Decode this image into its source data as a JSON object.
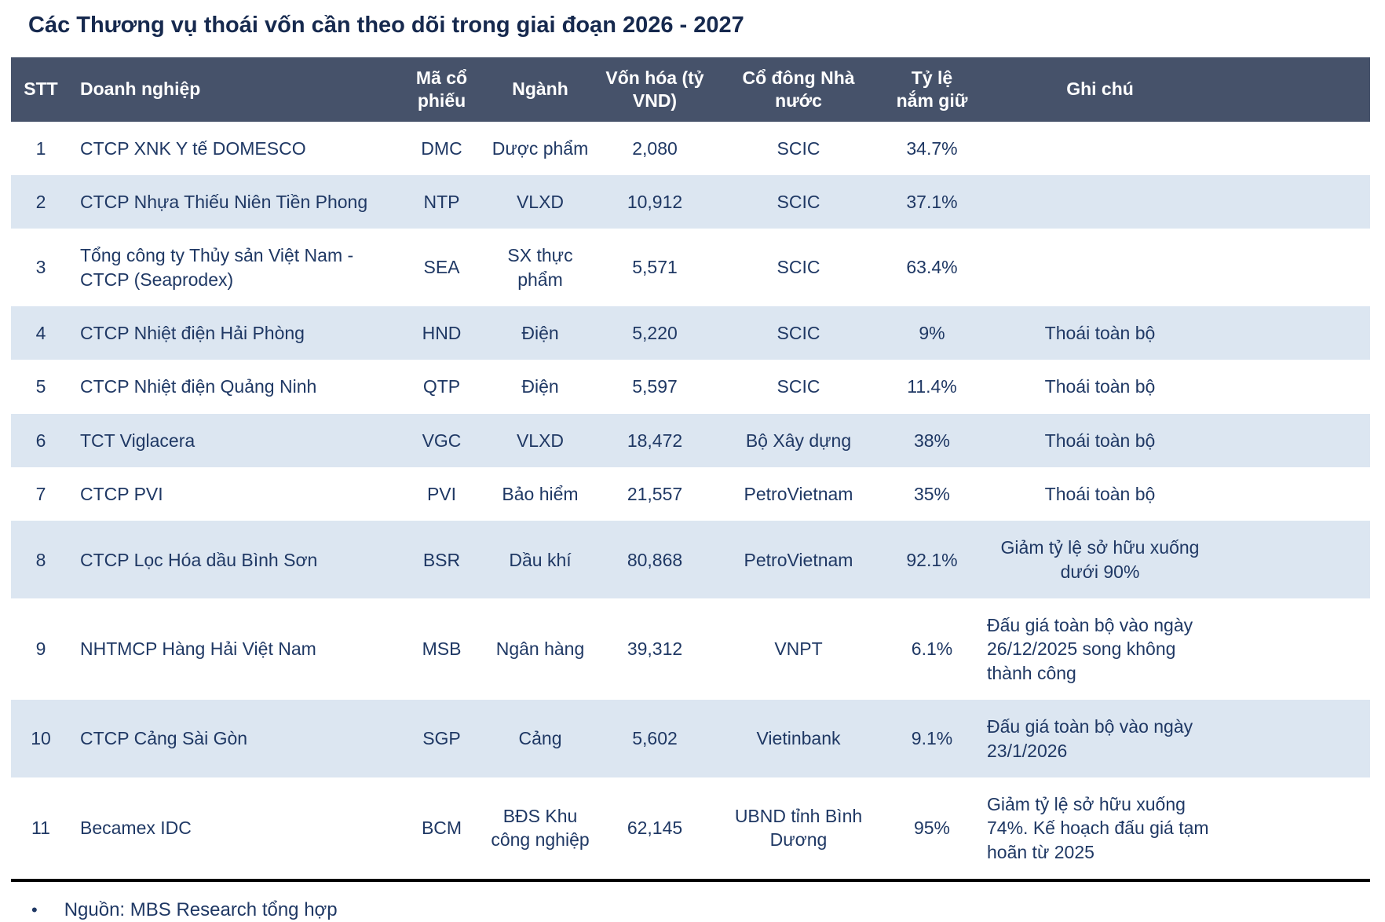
{
  "title": "Các Thương vụ thoái vốn cần theo dõi trong giai đoạn 2026 - 2027",
  "colors": {
    "title-color": "#16294e",
    "header-bg": "#46526a",
    "header-text": "#ffffff",
    "row-alt": "#dce6f1",
    "body-text": "#1f3864",
    "border-bottom": "#000000"
  },
  "table": {
    "columns": [
      {
        "field": "stt",
        "label": "STT"
      },
      {
        "field": "company",
        "label": "Doanh nghiệp"
      },
      {
        "field": "ticker",
        "label": "Mã cổ phiếu"
      },
      {
        "field": "industry",
        "label": "Ngành"
      },
      {
        "field": "market_cap",
        "label": "Vốn hóa (tỷ VND)"
      },
      {
        "field": "state_shareholder",
        "label": "Cổ đông Nhà nước"
      },
      {
        "field": "stake",
        "label": "Tỷ lệ nắm giữ"
      },
      {
        "field": "note",
        "label": "Ghi chú"
      }
    ],
    "rows": [
      {
        "stt": "1",
        "company": "CTCP XNK Y tế DOMESCO",
        "ticker": "DMC",
        "industry": "Dược phẩm",
        "market_cap": "2,080",
        "state_shareholder": "SCIC",
        "stake": "34.7%",
        "note": ""
      },
      {
        "stt": "2",
        "company": "CTCP Nhựa Thiếu Niên Tiền Phong",
        "ticker": "NTP",
        "industry": "VLXD",
        "market_cap": "10,912",
        "state_shareholder": "SCIC",
        "stake": "37.1%",
        "note": ""
      },
      {
        "stt": "3",
        "company": "Tổng công ty Thủy sản Việt Nam - CTCP (Seaprodex)",
        "ticker": "SEA",
        "industry": "SX thực phẩm",
        "market_cap": "5,571",
        "state_shareholder": "SCIC",
        "stake": "63.4%",
        "note": ""
      },
      {
        "stt": "4",
        "company": "CTCP Nhiệt điện Hải Phòng",
        "ticker": "HND",
        "industry": "Điện",
        "market_cap": "5,220",
        "state_shareholder": "SCIC",
        "stake": "9%",
        "note": "Thoái toàn bộ"
      },
      {
        "stt": "5",
        "company": "CTCP Nhiệt điện Quảng Ninh",
        "ticker": "QTP",
        "industry": "Điện",
        "market_cap": "5,597",
        "state_shareholder": "SCIC",
        "stake": "11.4%",
        "note": "Thoái toàn bộ"
      },
      {
        "stt": "6",
        "company": "TCT Viglacera",
        "ticker": "VGC",
        "industry": "VLXD",
        "market_cap": "18,472",
        "state_shareholder": "Bộ Xây dựng",
        "stake": "38%",
        "note": "Thoái toàn bộ"
      },
      {
        "stt": "7",
        "company": "CTCP PVI",
        "ticker": "PVI",
        "industry": "Bảo hiểm",
        "market_cap": "21,557",
        "state_shareholder": "PetroVietnam",
        "stake": "35%",
        "note": "Thoái toàn bộ"
      },
      {
        "stt": "8",
        "company": "CTCP Lọc Hóa dầu Bình Sơn",
        "ticker": "BSR",
        "industry": "Dầu khí",
        "market_cap": "80,868",
        "state_shareholder": "PetroVietnam",
        "stake": "92.1%",
        "note": "Giảm tỷ lệ sở hữu xuống dưới 90%"
      },
      {
        "stt": "9",
        "company": "NHTMCP Hàng Hải Việt Nam",
        "ticker": "MSB",
        "industry": "Ngân hàng",
        "market_cap": "39,312",
        "state_shareholder": "VNPT",
        "stake": "6.1%",
        "note": "Đấu giá toàn bộ vào ngày 26/12/2025 song không thành công"
      },
      {
        "stt": "10",
        "company": "CTCP Cảng Sài Gòn",
        "ticker": "SGP",
        "industry": "Cảng",
        "market_cap": "5,602",
        "state_shareholder": "Vietinbank",
        "stake": "9.1%",
        "note": "Đấu giá toàn bộ vào ngày 23/1/2026"
      },
      {
        "stt": "11",
        "company": "Becamex IDC",
        "ticker": "BCM",
        "industry": "BĐS Khu công nghiệp",
        "market_cap": "62,145",
        "state_shareholder": "UBND tỉnh Bình Dương",
        "stake": "95%",
        "note": "Giảm tỷ lệ sở hữu xuống 74%. Kế hoạch đấu giá tạm hoãn từ 2025"
      }
    ]
  },
  "footer": {
    "bullet": "•",
    "source": "Nguồn: MBS Research tổng hợp"
  }
}
